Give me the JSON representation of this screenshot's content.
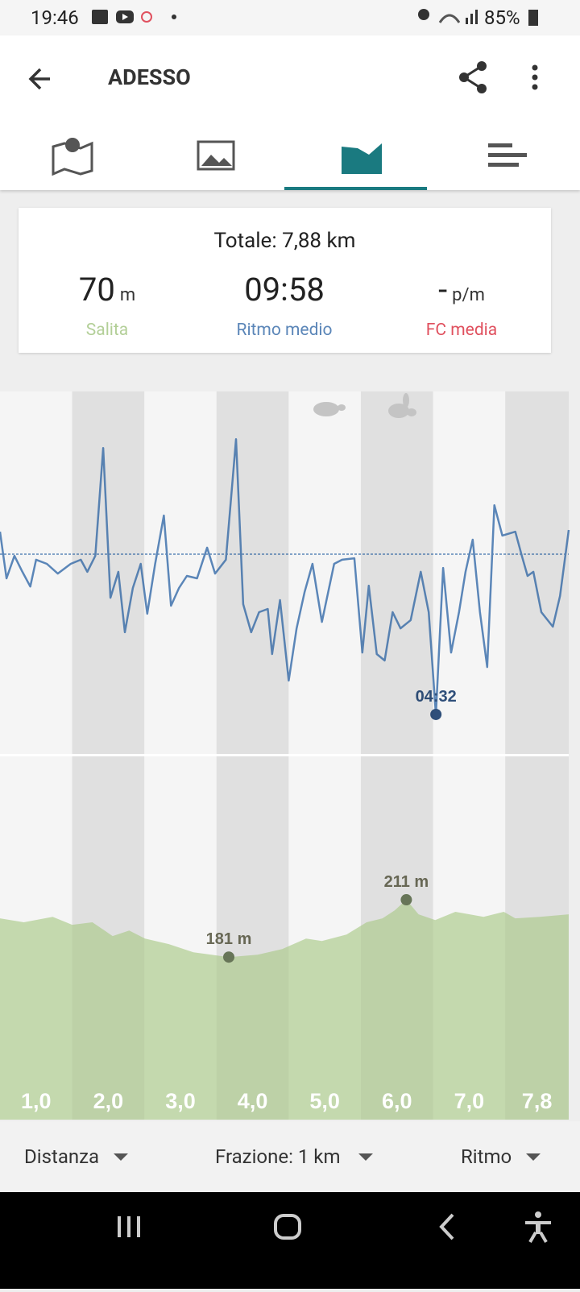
{
  "status_bar": {
    "time": "19:46",
    "battery": "85%"
  },
  "header": {
    "title": "ADESSO"
  },
  "summary": {
    "total": "Totale: 7,88 km",
    "stats": [
      {
        "value": "70",
        "unit": "m",
        "label": "Salita",
        "color": "#b3cf98"
      },
      {
        "value": "09:58",
        "label": "Ritmo medio",
        "color": "#5b86b8"
      },
      {
        "value": "-",
        "unit": "p/m",
        "label": "FC media",
        "color": "#e0505e"
      }
    ]
  },
  "chart_data": [
    {
      "type": "line",
      "color": "#5b86b8",
      "xlim": [
        0,
        7.88
      ],
      "ylim": [
        3.19,
        15.49
      ],
      "average": 9.97,
      "x": [
        0,
        0.09,
        0.2,
        0.31,
        0.42,
        0.5,
        0.65,
        0.8,
        0.98,
        1.12,
        1.21,
        1.32,
        1.43,
        1.53,
        1.64,
        1.73,
        1.84,
        1.95,
        2.04,
        2.15,
        2.27,
        2.37,
        2.48,
        2.59,
        2.73,
        2.87,
        2.98,
        3.13,
        3.27,
        3.37,
        3.48,
        3.59,
        3.71,
        3.77,
        3.88,
        4.0,
        4.11,
        4.22,
        4.33,
        4.46,
        4.63,
        4.74,
        4.91,
        5.02,
        5.11,
        5.22,
        5.33,
        5.44,
        5.55,
        5.69,
        5.83,
        5.94,
        6.04,
        6.14,
        6.25,
        6.36,
        6.45,
        6.55,
        6.65,
        6.75,
        6.85,
        6.96,
        7.14,
        7.23,
        7.31,
        7.39,
        7.5,
        7.66,
        7.76,
        7.88
      ],
      "values": [
        10.73,
        9.15,
        9.91,
        9.37,
        8.87,
        9.78,
        9.64,
        9.31,
        9.64,
        9.78,
        9.37,
        9.91,
        13.57,
        8.49,
        9.37,
        7.32,
        8.82,
        9.64,
        7.95,
        9.64,
        11.28,
        8.22,
        8.82,
        9.23,
        9.15,
        10.19,
        9.31,
        9.78,
        13.87,
        8.27,
        7.32,
        8.0,
        8.11,
        6.58,
        8.41,
        5.68,
        7.45,
        8.68,
        9.64,
        7.67,
        9.64,
        9.78,
        9.83,
        6.63,
        8.9,
        6.58,
        6.36,
        8.0,
        7.45,
        7.73,
        9.37,
        8.0,
        4.53,
        9.5,
        6.63,
        8.0,
        9.37,
        10.46,
        8.0,
        6.14,
        11.63,
        10.6,
        10.73,
        9.91,
        9.23,
        9.37,
        8.0,
        7.51,
        8.55,
        10.79
      ],
      "annotations": [
        {
          "x": 6.04,
          "value": 4.53,
          "label": "04:32"
        }
      ]
    },
    {
      "type": "area",
      "color": "#c4d9ae",
      "xlim": [
        0,
        7.88
      ],
      "ylim": [
        96,
        286
      ],
      "x": [
        0,
        0.33,
        0.73,
        1.0,
        1.28,
        1.4,
        1.56,
        1.79,
        2.01,
        2.34,
        2.68,
        3.17,
        3.57,
        3.91,
        4.24,
        4.46,
        4.8,
        5.08,
        5.3,
        5.47,
        5.63,
        5.8,
        6.03,
        6.31,
        6.7,
        6.98,
        7.14,
        7.48,
        7.88
      ],
      "values": [
        201.3,
        199.2,
        202.1,
        197.9,
        199.2,
        196.2,
        192.0,
        194.9,
        190.7,
        187.8,
        183.5,
        181,
        182.3,
        185.2,
        190.7,
        189.4,
        192.8,
        199.2,
        201.3,
        205.5,
        211,
        203.4,
        200.4,
        204.7,
        202.1,
        204.7,
        201.3,
        202.1,
        203.4
      ],
      "annotations": [
        {
          "x": 3.17,
          "value": 181,
          "label": "181 m"
        },
        {
          "x": 5.63,
          "value": 211,
          "label": "211 m"
        }
      ],
      "band_labels": [
        "1,0",
        "2,0",
        "3,0",
        "4,0",
        "5,0",
        "6,0",
        "7,0",
        "7,8"
      ]
    }
  ],
  "controls": [
    "Distanza",
    "Frazione: 1 km",
    "Ritmo"
  ]
}
